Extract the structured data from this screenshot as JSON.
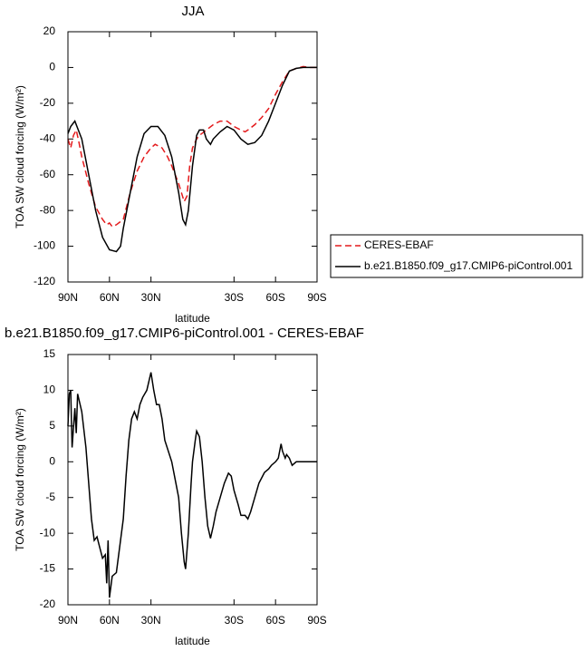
{
  "chart_data": [
    {
      "type": "line",
      "title": "JJA",
      "xlabel": "latitude",
      "ylabel": "TOA SW cloud forcing (W/m²)",
      "xlim": [
        90,
        -90
      ],
      "ylim": [
        -120,
        20
      ],
      "xticks": [
        {
          "value": 90,
          "label": "90N"
        },
        {
          "value": 60,
          "label": "60N"
        },
        {
          "value": 30,
          "label": "30N"
        },
        {
          "value": -30,
          "label": "30S"
        },
        {
          "value": -60,
          "label": "60S"
        },
        {
          "value": -90,
          "label": "90S"
        }
      ],
      "yticks": [
        -120,
        -100,
        -80,
        -60,
        -40,
        -20,
        0,
        20
      ],
      "legend": "right",
      "series": [
        {
          "name": "CERES-EBAF",
          "color": "#e41a1c",
          "dash": true,
          "x": [
            90,
            88,
            86,
            84,
            82,
            80,
            75,
            70,
            65,
            62,
            60,
            58,
            55,
            50,
            45,
            40,
            35,
            30,
            27,
            22,
            18,
            15,
            10,
            6,
            4,
            2,
            0,
            -3,
            -5,
            -10,
            -15,
            -20,
            -25,
            -30,
            -35,
            -38,
            -40,
            -45,
            -50,
            -55,
            -60,
            -65,
            -70,
            -75,
            -80,
            -85,
            -90
          ],
          "values": [
            -40,
            -45,
            -38,
            -35,
            -42,
            -50,
            -65,
            -78,
            -85,
            -88,
            -87,
            -89,
            -88,
            -85,
            -70,
            -58,
            -50,
            -45,
            -43,
            -45,
            -50,
            -55,
            -65,
            -75,
            -72,
            -55,
            -45,
            -40,
            -38,
            -35,
            -32,
            -30,
            -30,
            -33,
            -35,
            -36,
            -35,
            -32,
            -28,
            -23,
            -15,
            -8,
            -2,
            -0.5,
            0.5,
            0,
            0
          ]
        },
        {
          "name": "b.e21.B1850.f09_g17.CMIP6-piControl.001",
          "color": "#000000",
          "dash": false,
          "x": [
            90,
            88,
            85,
            80,
            75,
            70,
            65,
            60,
            55,
            52,
            50,
            45,
            40,
            35,
            30,
            25,
            20,
            15,
            10,
            7,
            5,
            3,
            0,
            -3,
            -5,
            -8,
            -10,
            -13,
            -15,
            -20,
            -25,
            -30,
            -35,
            -40,
            -45,
            -50,
            -55,
            -60,
            -65,
            -70,
            -75,
            -80,
            -85,
            -90
          ],
          "values": [
            -37,
            -33,
            -30,
            -40,
            -60,
            -80,
            -95,
            -102,
            -103,
            -100,
            -90,
            -70,
            -50,
            -37,
            -33,
            -33,
            -38,
            -50,
            -70,
            -85,
            -88,
            -80,
            -55,
            -38,
            -35,
            -35,
            -40,
            -43,
            -40,
            -36,
            -33,
            -35,
            -40,
            -43,
            -42,
            -38,
            -30,
            -20,
            -10,
            -2,
            -0.5,
            0,
            0,
            0
          ]
        }
      ]
    },
    {
      "type": "line",
      "title": "b.e21.B1850.f09_g17.CMIP6-piControl.001 - CERES-EBAF",
      "xlabel": "latitude",
      "ylabel": "TOA SW cloud forcing (W/m²)",
      "xlim": [
        90,
        -90
      ],
      "ylim": [
        -20,
        15
      ],
      "xticks": [
        {
          "value": 90,
          "label": "90N"
        },
        {
          "value": 60,
          "label": "60N"
        },
        {
          "value": 30,
          "label": "30N"
        },
        {
          "value": -30,
          "label": "30S"
        },
        {
          "value": -60,
          "label": "60S"
        },
        {
          "value": -90,
          "label": "90S"
        }
      ],
      "yticks": [
        -20,
        -15,
        -10,
        -5,
        0,
        5,
        10,
        15
      ],
      "series": [
        {
          "color": "#000000",
          "dash": false,
          "x": [
            90,
            89,
            88,
            87,
            85,
            84,
            83,
            80,
            77,
            75,
            73,
            71,
            69,
            67,
            65,
            63,
            62,
            61,
            60,
            58,
            55,
            52,
            50,
            48,
            46,
            44,
            42,
            40,
            38,
            36,
            33,
            30,
            28,
            26,
            24,
            22,
            20,
            15,
            12,
            10,
            8,
            6,
            5,
            3,
            1,
            0,
            -2,
            -3,
            -5,
            -7,
            -9,
            -11,
            -13,
            -15,
            -17,
            -20,
            -23,
            -26,
            -28,
            -30,
            -33,
            -35,
            -38,
            -40,
            -42,
            -45,
            -48,
            -52,
            -55,
            -57,
            -60,
            -62,
            -64,
            -65,
            -67,
            -68,
            -70,
            -72,
            -75,
            -80,
            -85,
            -90
          ],
          "values": [
            5,
            9.5,
            10,
            2,
            7.5,
            4,
            9.5,
            7,
            2,
            -3,
            -8,
            -11,
            -10.5,
            -12,
            -13.5,
            -13,
            -17,
            -11,
            -19,
            -16,
            -15.5,
            -11,
            -8,
            -2,
            3,
            6,
            7,
            6,
            8,
            9,
            10,
            12.5,
            10,
            8,
            8,
            6,
            3,
            0,
            -3,
            -5,
            -10,
            -14,
            -15,
            -10,
            -3,
            0,
            3,
            4.3,
            3.5,
            0,
            -5,
            -9,
            -10.7,
            -9,
            -7,
            -5,
            -3,
            -1.6,
            -2,
            -4,
            -6,
            -7.5,
            -7.5,
            -8,
            -7,
            -5,
            -3,
            -1.5,
            -1,
            -0.5,
            0,
            0.5,
            2.5,
            1.5,
            0.5,
            1,
            0.5,
            -0.5,
            0,
            0,
            0,
            0
          ]
        }
      ]
    }
  ]
}
